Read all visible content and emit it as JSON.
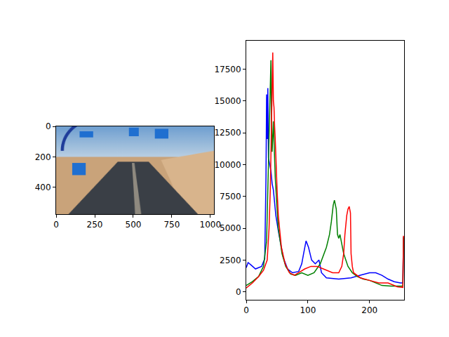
{
  "chart_data": [
    {
      "type": "image",
      "xlim": [
        -0.5,
        1023.5
      ],
      "ylim": [
        575.5,
        -0.5
      ],
      "xticks": [
        0,
        250,
        500,
        750,
        1000
      ],
      "yticks": [
        0,
        200,
        400
      ],
      "grid": false
    },
    {
      "type": "line",
      "xlim": [
        0,
        256
      ],
      "ylim": [
        -625,
        19725
      ],
      "xticks": [
        0,
        100,
        200
      ],
      "yticks": [
        0,
        2500,
        5000,
        7500,
        10000,
        12500,
        15000,
        17500
      ],
      "grid": false,
      "series": [
        {
          "color": "blue",
          "x": [
            0,
            3,
            8,
            15,
            25,
            30,
            32,
            33,
            34,
            35,
            36,
            38,
            40,
            42,
            44,
            46,
            48,
            52,
            55,
            60,
            67,
            75,
            85,
            90,
            93,
            97,
            101,
            106,
            112,
            116,
            118,
            122,
            130,
            150,
            170,
            185,
            200,
            210,
            220,
            230,
            240,
            250,
            254,
            255
          ],
          "values": [
            1900,
            2300,
            2100,
            1800,
            2000,
            2600,
            9000,
            15500,
            12000,
            16000,
            10500,
            10000,
            9500,
            8500,
            8000,
            7000,
            6000,
            4800,
            4000,
            2700,
            1800,
            1500,
            1600,
            2200,
            3000,
            4000,
            3500,
            2500,
            2200,
            2400,
            2500,
            1500,
            1100,
            1000,
            1100,
            1300,
            1500,
            1500,
            1300,
            1000,
            800,
            700,
            700,
            4300
          ]
        },
        {
          "color": "green",
          "x": [
            0,
            10,
            20,
            28,
            33,
            35,
            37,
            39,
            40,
            41,
            42,
            44,
            45,
            47,
            50,
            52,
            58,
            64,
            72,
            80,
            90,
            100,
            110,
            120,
            130,
            135,
            138,
            141,
            143,
            145,
            146,
            148,
            150,
            152,
            158,
            165,
            172,
            180,
            190,
            200,
            210,
            220,
            235,
            250,
            254,
            255
          ],
          "values": [
            500,
            800,
            1200,
            2000,
            4000,
            8000,
            12000,
            16000,
            18200,
            13000,
            11000,
            13400,
            12000,
            9000,
            6500,
            5000,
            3000,
            2000,
            1400,
            1300,
            1500,
            1300,
            1500,
            2200,
            3500,
            4500,
            5500,
            6800,
            7200,
            6800,
            6500,
            4500,
            4200,
            4500,
            3000,
            2000,
            1500,
            1200,
            1000,
            900,
            700,
            500,
            450,
            450,
            450,
            4300
          ]
        },
        {
          "color": "red",
          "x": [
            0,
            10,
            20,
            28,
            34,
            37,
            39,
            41,
            42,
            43,
            44,
            45,
            46,
            47,
            50,
            52,
            57,
            63,
            70,
            78,
            85,
            95,
            105,
            115,
            125,
            140,
            150,
            155,
            158,
            160,
            163,
            165,
            167,
            169,
            170,
            172,
            174,
            185,
            200,
            215,
            230,
            245,
            254,
            255
          ],
          "values": [
            300,
            700,
            1200,
            1700,
            2500,
            5000,
            8000,
            13000,
            16000,
            18800,
            15000,
            14500,
            13000,
            12000,
            8000,
            6000,
            3500,
            2200,
            1500,
            1300,
            1500,
            1800,
            2000,
            2000,
            1800,
            1500,
            1500,
            2000,
            3000,
            4500,
            6000,
            6500,
            6700,
            6200,
            3000,
            2000,
            1500,
            1100,
            900,
            700,
            700,
            400,
            350,
            4400
          ]
        }
      ]
    }
  ]
}
